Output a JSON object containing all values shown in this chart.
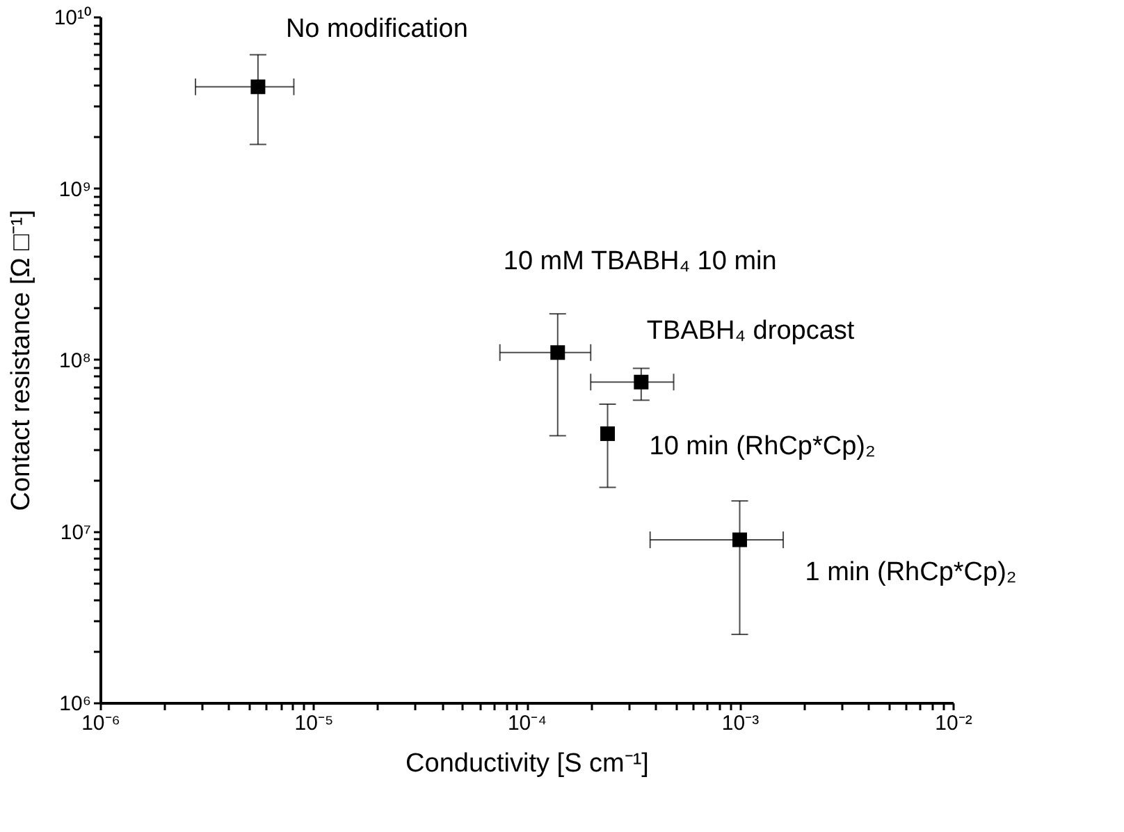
{
  "chart_data": {
    "type": "scatter",
    "xlabel": "Conductivity [S cm⁻¹]",
    "ylabel": "Contact resistance [Ω □⁻¹]",
    "log": "xy",
    "grid": false,
    "marker": "square",
    "xlim": [
      1e-06,
      0.01
    ],
    "ylim": [
      1000000.0,
      10000000000.0
    ],
    "xticks": [
      {
        "value": 1e-06,
        "label": "10⁻⁶"
      },
      {
        "value": 2e-06,
        "label": null
      },
      {
        "value": 3e-06,
        "label": null
      },
      {
        "value": 4e-06,
        "label": null
      },
      {
        "value": 5e-06,
        "label": null
      },
      {
        "value": 6e-06,
        "label": null
      },
      {
        "value": 7e-06,
        "label": null
      },
      {
        "value": 8e-06,
        "label": null
      },
      {
        "value": 9e-06,
        "label": null
      },
      {
        "value": 1e-05,
        "label": "10⁻⁵"
      },
      {
        "value": 2e-05,
        "label": null
      },
      {
        "value": 3e-05,
        "label": null
      },
      {
        "value": 4e-05,
        "label": null
      },
      {
        "value": 5e-05,
        "label": null
      },
      {
        "value": 6e-05,
        "label": null
      },
      {
        "value": 7e-05,
        "label": null
      },
      {
        "value": 8e-05,
        "label": null
      },
      {
        "value": 9e-05,
        "label": null
      },
      {
        "value": 0.0001,
        "label": "10⁻⁴"
      },
      {
        "value": 0.0002,
        "label": null
      },
      {
        "value": 0.0003,
        "label": null
      },
      {
        "value": 0.0004,
        "label": null
      },
      {
        "value": 0.0005,
        "label": null
      },
      {
        "value": 0.0006,
        "label": null
      },
      {
        "value": 0.0007,
        "label": null
      },
      {
        "value": 0.0008,
        "label": null
      },
      {
        "value": 0.0009,
        "label": null
      },
      {
        "value": 0.001,
        "label": "10⁻³"
      },
      {
        "value": 0.002,
        "label": null
      },
      {
        "value": 0.003,
        "label": null
      },
      {
        "value": 0.004,
        "label": null
      },
      {
        "value": 0.005,
        "label": null
      },
      {
        "value": 0.006,
        "label": null
      },
      {
        "value": 0.007,
        "label": null
      },
      {
        "value": 0.008,
        "label": null
      },
      {
        "value": 0.009,
        "label": null
      },
      {
        "value": 0.01,
        "label": "10⁻²"
      }
    ],
    "yticks": [
      {
        "value": 1000000.0,
        "label": "10⁶"
      },
      {
        "value": 2000000.0,
        "label": null
      },
      {
        "value": 3000000.0,
        "label": null
      },
      {
        "value": 4000000.0,
        "label": null
      },
      {
        "value": 5000000.0,
        "label": null
      },
      {
        "value": 6000000.0,
        "label": null
      },
      {
        "value": 7000000.0,
        "label": null
      },
      {
        "value": 8000000.0,
        "label": null
      },
      {
        "value": 9000000.0,
        "label": null
      },
      {
        "value": 10000000.0,
        "label": "10⁷"
      },
      {
        "value": 20000000.0,
        "label": null
      },
      {
        "value": 30000000.0,
        "label": null
      },
      {
        "value": 40000000.0,
        "label": null
      },
      {
        "value": 50000000.0,
        "label": null
      },
      {
        "value": 60000000.0,
        "label": null
      },
      {
        "value": 70000000.0,
        "label": null
      },
      {
        "value": 80000000.0,
        "label": null
      },
      {
        "value": 90000000.0,
        "label": null
      },
      {
        "value": 100000000.0,
        "label": "10⁸"
      },
      {
        "value": 200000000.0,
        "label": null
      },
      {
        "value": 300000000.0,
        "label": null
      },
      {
        "value": 400000000.0,
        "label": null
      },
      {
        "value": 500000000.0,
        "label": null
      },
      {
        "value": 600000000.0,
        "label": null
      },
      {
        "value": 700000000.0,
        "label": null
      },
      {
        "value": 800000000.0,
        "label": null
      },
      {
        "value": 900000000.0,
        "label": null
      },
      {
        "value": 1000000000.0,
        "label": "10⁹"
      },
      {
        "value": 2000000000.0,
        "label": null
      },
      {
        "value": 3000000000.0,
        "label": null
      },
      {
        "value": 4000000000.0,
        "label": null
      },
      {
        "value": 5000000000.0,
        "label": null
      },
      {
        "value": 6000000000.0,
        "label": null
      },
      {
        "value": 7000000000.0,
        "label": null
      },
      {
        "value": 8000000000.0,
        "label": null
      },
      {
        "value": 9000000000.0,
        "label": null
      },
      {
        "value": 10000000000.0,
        "label": "10¹⁰"
      }
    ],
    "series": [
      {
        "color": "#000000",
        "x": [
          5.5e-06,
          0.00014,
          0.000345,
          0.00024,
          0.001
        ],
        "values": [
          3900000000.0,
          110000000.0,
          74000000.0,
          37000000.0,
          8900000.0
        ],
        "errors": [
          [
            1800000000.0,
            6000000000.0
          ],
          [
            36000000.0,
            185000000.0
          ],
          [
            58000000.0,
            89000000.0
          ],
          [
            18000000.0,
            55000000.0
          ],
          [
            2500000.0,
            15000000.0
          ]
        ],
        "xerrors": [
          [
            2.8e-06,
            8.1e-06
          ],
          [
            7.5e-05,
            0.0002
          ],
          [
            0.0002,
            0.00049
          ],
          null,
          [
            0.00038,
            0.0016
          ]
        ]
      }
    ],
    "annotations": [
      {
        "text": "No modification",
        "x": 5.5e-06,
        "y": 3900000000.0
      },
      {
        "text": "10 mM TBABH₄ 10 min",
        "x": 0.00014,
        "y": 110000000.0
      },
      {
        "text": "TBABH₄ dropcast",
        "x": 0.000345,
        "y": 74000000.0
      },
      {
        "text": "10 min (RhCp*Cp)₂",
        "x": 0.00024,
        "y": 37000000.0
      },
      {
        "text": "1 min (RhCp*Cp)₂",
        "x": 0.001,
        "y": 8900000.0
      }
    ]
  }
}
